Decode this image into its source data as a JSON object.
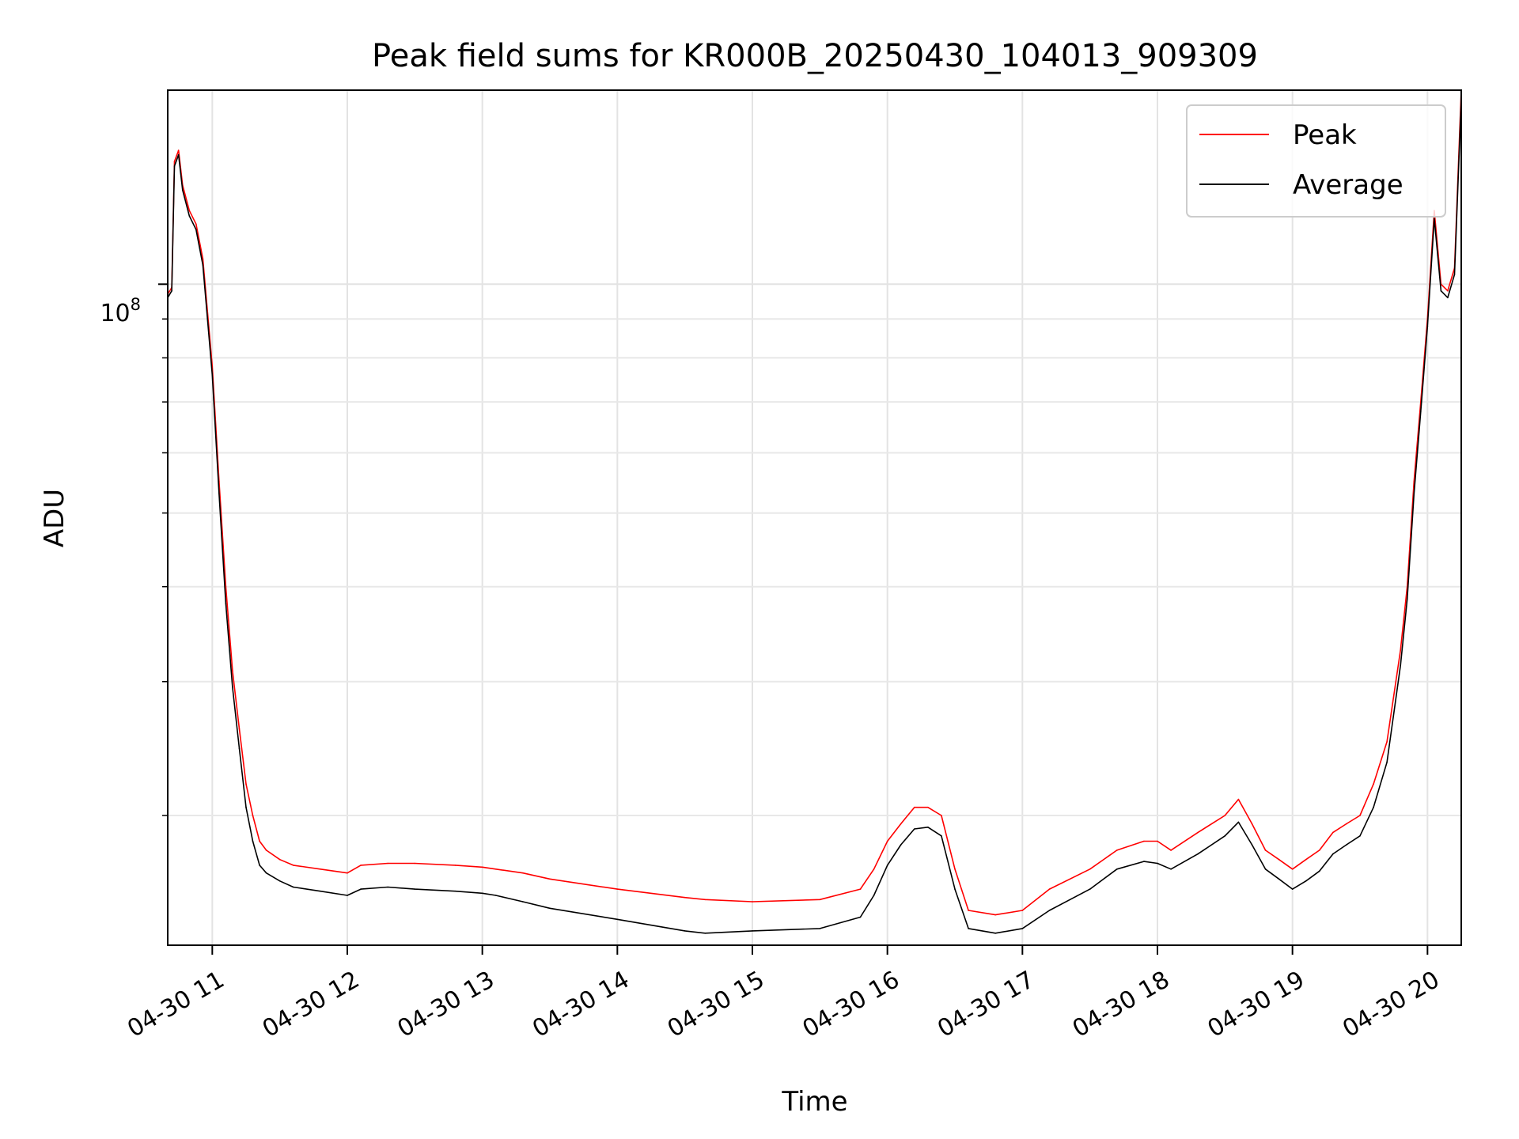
{
  "chart_data": {
    "type": "line",
    "title": "Peak field sums for KR000B_20250430_104013_909309",
    "xlabel": "Time",
    "ylabel": "ADU",
    "yscale": "log",
    "x_unit": "hours since 2025-04-30 00:00",
    "xlim": [
      10.67,
      20.25
    ],
    "ylim": [
      13500000,
      180000000
    ],
    "y_major_tick": {
      "value": 100000000,
      "label_base": "10",
      "label_exp": "8"
    },
    "y_minor_ticks": [
      20000000,
      30000000,
      40000000,
      50000000,
      60000000,
      70000000,
      80000000,
      90000000
    ],
    "x_ticks": [
      {
        "value": 11,
        "label": "04-30 11"
      },
      {
        "value": 12,
        "label": "04-30 12"
      },
      {
        "value": 13,
        "label": "04-30 13"
      },
      {
        "value": 14,
        "label": "04-30 14"
      },
      {
        "value": 15,
        "label": "04-30 15"
      },
      {
        "value": 16,
        "label": "04-30 16"
      },
      {
        "value": 17,
        "label": "04-30 17"
      },
      {
        "value": 18,
        "label": "04-30 18"
      },
      {
        "value": 19,
        "label": "04-30 19"
      },
      {
        "value": 20,
        "label": "04-30 20"
      }
    ],
    "grid": true,
    "legend_position": "top-right",
    "series": [
      {
        "name": "Peak",
        "color": "#ff0000",
        "x": [
          10.67,
          10.7,
          10.72,
          10.75,
          10.78,
          10.83,
          10.88,
          10.93,
          11.0,
          11.05,
          11.1,
          11.15,
          11.2,
          11.25,
          11.3,
          11.35,
          11.4,
          11.5,
          11.6,
          11.8,
          12.0,
          12.1,
          12.3,
          12.5,
          12.8,
          13.0,
          13.1,
          13.3,
          13.5,
          14.0,
          14.5,
          14.65,
          15.0,
          15.5,
          15.8,
          15.9,
          16.0,
          16.1,
          16.2,
          16.3,
          16.4,
          16.5,
          16.6,
          16.8,
          17.0,
          17.2,
          17.5,
          17.7,
          17.9,
          18.0,
          18.1,
          18.3,
          18.5,
          18.6,
          18.7,
          18.8,
          18.9,
          19.0,
          19.1,
          19.2,
          19.3,
          19.4,
          19.5,
          19.6,
          19.7,
          19.8,
          19.85,
          19.9,
          19.95,
          20.0,
          20.05,
          20.1,
          20.15,
          20.2,
          20.25
        ],
        "values": [
          97000000,
          99000000,
          145000000,
          150000000,
          135000000,
          125000000,
          120000000,
          108000000,
          78000000,
          55000000,
          40000000,
          31000000,
          26000000,
          22000000,
          20000000,
          18500000,
          18000000,
          17500000,
          17200000,
          17000000,
          16800000,
          17200000,
          17300000,
          17300000,
          17200000,
          17100000,
          17000000,
          16800000,
          16500000,
          16000000,
          15600000,
          15500000,
          15400000,
          15500000,
          16000000,
          17000000,
          18500000,
          19500000,
          20500000,
          20500000,
          20000000,
          17000000,
          15000000,
          14800000,
          15000000,
          16000000,
          17000000,
          18000000,
          18500000,
          18500000,
          18000000,
          19000000,
          20000000,
          21000000,
          19500000,
          18000000,
          17500000,
          17000000,
          17500000,
          18000000,
          19000000,
          19500000,
          20000000,
          22000000,
          25000000,
          33000000,
          40000000,
          55000000,
          70000000,
          90000000,
          125000000,
          100000000,
          98000000,
          105000000,
          180000000
        ]
      },
      {
        "name": "Average",
        "color": "#000000",
        "x": [
          10.67,
          10.7,
          10.72,
          10.75,
          10.78,
          10.83,
          10.88,
          10.93,
          11.0,
          11.05,
          11.1,
          11.15,
          11.2,
          11.25,
          11.3,
          11.35,
          11.4,
          11.5,
          11.6,
          11.8,
          12.0,
          12.1,
          12.3,
          12.5,
          12.8,
          13.0,
          13.1,
          13.3,
          13.5,
          14.0,
          14.5,
          14.65,
          15.0,
          15.5,
          15.8,
          15.9,
          16.0,
          16.1,
          16.2,
          16.3,
          16.4,
          16.5,
          16.6,
          16.8,
          17.0,
          17.2,
          17.5,
          17.7,
          17.9,
          18.0,
          18.1,
          18.3,
          18.5,
          18.6,
          18.7,
          18.8,
          18.9,
          19.0,
          19.1,
          19.2,
          19.3,
          19.4,
          19.5,
          19.6,
          19.7,
          19.8,
          19.85,
          19.9,
          19.95,
          20.0,
          20.05,
          20.1,
          20.15,
          20.2,
          20.25
        ],
        "values": [
          96000000,
          98000000,
          143000000,
          148000000,
          133000000,
          123000000,
          118000000,
          106000000,
          76000000,
          53000000,
          38000000,
          29500000,
          24500000,
          20500000,
          18500000,
          17200000,
          16800000,
          16400000,
          16100000,
          15900000,
          15700000,
          16000000,
          16100000,
          16000000,
          15900000,
          15800000,
          15700000,
          15400000,
          15100000,
          14600000,
          14100000,
          14000000,
          14100000,
          14200000,
          14700000,
          15700000,
          17200000,
          18300000,
          19200000,
          19300000,
          18800000,
          16000000,
          14200000,
          14000000,
          14200000,
          15000000,
          16000000,
          17000000,
          17400000,
          17300000,
          17000000,
          17800000,
          18800000,
          19600000,
          18300000,
          17000000,
          16500000,
          16000000,
          16400000,
          16900000,
          17800000,
          18300000,
          18800000,
          20500000,
          23500000,
          31500000,
          38500000,
          53000000,
          68000000,
          88000000,
          122000000,
          98000000,
          96000000,
          103000000,
          175000000
        ]
      }
    ]
  }
}
